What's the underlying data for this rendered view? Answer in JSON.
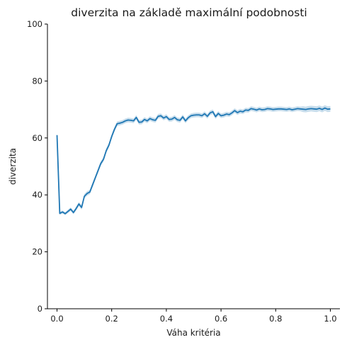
{
  "chart_data": {
    "type": "line",
    "title": "diverzita na základě maximální podobnosti",
    "xlabel": "Váha kritéria",
    "ylabel": "diverzita",
    "xlim": [
      -0.035,
      1.035
    ],
    "ylim": [
      0,
      100
    ],
    "xticks": [
      0.0,
      0.2,
      0.4,
      0.6,
      0.8,
      1.0
    ],
    "xtick_labels": [
      "0.0",
      "0.2",
      "0.4",
      "0.6",
      "0.8",
      "1.0"
    ],
    "yticks": [
      0,
      20,
      40,
      60,
      80,
      100
    ],
    "ytick_labels": [
      "0",
      "20",
      "40",
      "60",
      "80",
      "100"
    ],
    "grid": false,
    "legend": "none",
    "line_color": "#1f77b4",
    "band_color": "#1f77b4",
    "series": [
      {
        "x": [
          0.0,
          0.01,
          0.02,
          0.03,
          0.04,
          0.05,
          0.06,
          0.07,
          0.08,
          0.09,
          0.1,
          0.11,
          0.12,
          0.13,
          0.14,
          0.15,
          0.16,
          0.17,
          0.18,
          0.19,
          0.2,
          0.21,
          0.22,
          0.23,
          0.24,
          0.25,
          0.26,
          0.27,
          0.28,
          0.29,
          0.3,
          0.31,
          0.32,
          0.33,
          0.34,
          0.35,
          0.36,
          0.37,
          0.38,
          0.39,
          0.4,
          0.41,
          0.42,
          0.43,
          0.44,
          0.45,
          0.46,
          0.47,
          0.48,
          0.49,
          0.5,
          0.51,
          0.52,
          0.53,
          0.54,
          0.55,
          0.56,
          0.57,
          0.58,
          0.59,
          0.6,
          0.61,
          0.62,
          0.63,
          0.64,
          0.65,
          0.66,
          0.67,
          0.68,
          0.69,
          0.7,
          0.71,
          0.72,
          0.73,
          0.74,
          0.75,
          0.76,
          0.77,
          0.78,
          0.79,
          0.8,
          0.81,
          0.82,
          0.83,
          0.84,
          0.85,
          0.86,
          0.87,
          0.88,
          0.89,
          0.9,
          0.91,
          0.92,
          0.93,
          0.94,
          0.95,
          0.96,
          0.97,
          0.98,
          0.99,
          1.0
        ],
        "y": [
          61.0,
          33.5,
          34.0,
          33.4,
          34.2,
          35.0,
          33.8,
          35.2,
          36.8,
          35.6,
          39.5,
          40.5,
          41.0,
          43.5,
          46.0,
          48.5,
          51.0,
          52.5,
          55.5,
          57.5,
          60.5,
          63.0,
          65.0,
          65.2,
          65.5,
          66.0,
          66.3,
          66.2,
          66.0,
          67.2,
          65.5,
          65.6,
          66.5,
          66.0,
          66.8,
          66.4,
          66.2,
          67.6,
          67.8,
          67.0,
          67.5,
          66.5,
          66.6,
          67.2,
          66.4,
          66.2,
          67.4,
          66.0,
          67.1,
          67.8,
          68.0,
          68.1,
          68.1,
          67.8,
          68.5,
          67.6,
          68.8,
          69.2,
          67.5,
          68.6,
          67.8,
          68.0,
          68.4,
          68.2,
          68.8,
          69.6,
          68.9,
          69.4,
          69.2,
          69.8,
          69.7,
          70.3,
          70.1,
          69.8,
          70.2,
          69.9,
          70.0,
          70.3,
          70.2,
          70.0,
          70.1,
          70.2,
          70.2,
          70.1,
          70.0,
          70.2,
          69.9,
          70.1,
          70.3,
          70.2,
          70.1,
          70.0,
          70.2,
          70.3,
          70.2,
          70.1,
          70.4,
          70.0,
          70.5,
          70.1,
          70.2
        ],
        "ci": [
          0.3,
          0.5,
          0.5,
          0.5,
          0.6,
          0.6,
          0.6,
          0.7,
          0.7,
          0.8,
          0.8,
          0.8,
          0.8,
          0.8,
          0.8,
          0.8,
          0.8,
          0.8,
          0.8,
          0.8,
          0.8,
          0.8,
          0.8,
          0.8,
          0.8,
          0.8,
          0.8,
          0.8,
          0.8,
          0.8,
          0.8,
          0.8,
          0.8,
          0.8,
          0.8,
          0.8,
          0.8,
          0.8,
          0.8,
          0.8,
          0.8,
          0.8,
          0.8,
          0.8,
          0.8,
          0.8,
          0.8,
          0.8,
          0.8,
          0.8,
          0.8,
          0.8,
          0.8,
          0.8,
          0.8,
          0.8,
          0.8,
          0.8,
          0.8,
          0.8,
          0.8,
          0.8,
          0.8,
          0.8,
          0.8,
          0.8,
          0.8,
          0.8,
          0.8,
          0.8,
          0.8,
          0.8,
          0.8,
          0.8,
          0.8,
          0.8,
          0.8,
          0.8,
          0.8,
          0.8,
          0.8,
          0.8,
          0.8,
          0.8,
          0.8,
          0.8,
          0.8,
          0.8,
          0.8,
          0.8,
          1.0,
          1.0,
          1.0,
          1.0,
          1.0,
          1.0,
          1.0,
          1.0,
          1.0,
          1.0,
          1.0
        ]
      }
    ]
  }
}
